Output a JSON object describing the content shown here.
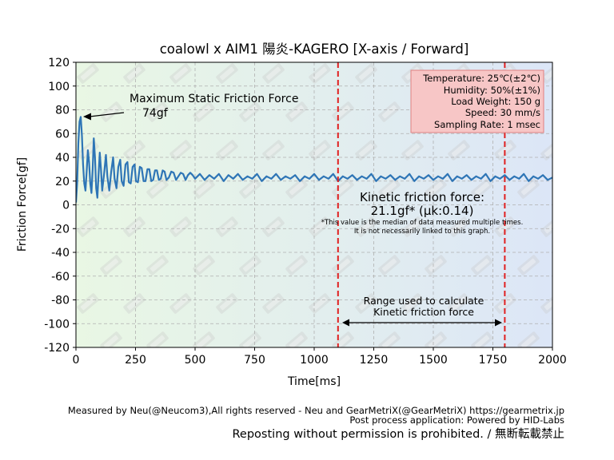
{
  "chart_data": {
    "type": "line",
    "title": "coalowl x AIM1 陽炎-KAGERO [X-axis / Forward]",
    "xlabel": "Time[ms]",
    "ylabel": "Friction Force[gf]",
    "xlim": [
      0,
      2000
    ],
    "ylim": [
      -120,
      120
    ],
    "xticks": [
      0,
      250,
      500,
      750,
      1000,
      1250,
      1500,
      1750,
      2000
    ],
    "yticks": [
      -120,
      -100,
      -80,
      -60,
      -40,
      -20,
      0,
      20,
      40,
      60,
      80,
      100,
      120
    ],
    "grid": true,
    "series": [
      {
        "name": "Friction Force",
        "color": "#2e75b6",
        "peak": {
          "x": 20,
          "y": 74
        },
        "kinetic_mean": 21.1,
        "points": [
          [
            0,
            2
          ],
          [
            5,
            18
          ],
          [
            10,
            52
          ],
          [
            15,
            70
          ],
          [
            20,
            74
          ],
          [
            25,
            58
          ],
          [
            30,
            34
          ],
          [
            35,
            18
          ],
          [
            40,
            12
          ],
          [
            45,
            28
          ],
          [
            50,
            46
          ],
          [
            55,
            36
          ],
          [
            60,
            18
          ],
          [
            65,
            10
          ],
          [
            70,
            30
          ],
          [
            75,
            56
          ],
          [
            80,
            40
          ],
          [
            85,
            14
          ],
          [
            90,
            6
          ],
          [
            95,
            26
          ],
          [
            100,
            44
          ],
          [
            105,
            30
          ],
          [
            110,
            12
          ],
          [
            118,
            26
          ],
          [
            126,
            42
          ],
          [
            132,
            24
          ],
          [
            140,
            12
          ],
          [
            148,
            28
          ],
          [
            156,
            40
          ],
          [
            162,
            22
          ],
          [
            170,
            14
          ],
          [
            178,
            32
          ],
          [
            186,
            38
          ],
          [
            192,
            20
          ],
          [
            200,
            16
          ],
          [
            208,
            34
          ],
          [
            216,
            36
          ],
          [
            222,
            19
          ],
          [
            230,
            18
          ],
          [
            238,
            32
          ],
          [
            246,
            34
          ],
          [
            252,
            20
          ],
          [
            260,
            19
          ],
          [
            268,
            32
          ],
          [
            276,
            31
          ],
          [
            284,
            20
          ],
          [
            292,
            20
          ],
          [
            300,
            30
          ],
          [
            308,
            30
          ],
          [
            316,
            20
          ],
          [
            324,
            21
          ],
          [
            332,
            29
          ],
          [
            340,
            29
          ],
          [
            348,
            21
          ],
          [
            356,
            22
          ],
          [
            364,
            29
          ],
          [
            372,
            28
          ],
          [
            380,
            21
          ],
          [
            390,
            23
          ],
          [
            400,
            28
          ],
          [
            410,
            27
          ],
          [
            420,
            21
          ],
          [
            430,
            24
          ],
          [
            440,
            27
          ],
          [
            450,
            26
          ],
          [
            460,
            21
          ],
          [
            470,
            25
          ],
          [
            480,
            27
          ],
          [
            490,
            25
          ],
          [
            500,
            22
          ],
          [
            520,
            26
          ],
          [
            540,
            21
          ],
          [
            560,
            25
          ],
          [
            580,
            22
          ],
          [
            600,
            26
          ],
          [
            620,
            20
          ],
          [
            640,
            25
          ],
          [
            660,
            22
          ],
          [
            680,
            26
          ],
          [
            700,
            21
          ],
          [
            720,
            24
          ],
          [
            740,
            22
          ],
          [
            760,
            26
          ],
          [
            780,
            20
          ],
          [
            800,
            24
          ],
          [
            820,
            22
          ],
          [
            840,
            26
          ],
          [
            860,
            21
          ],
          [
            880,
            24
          ],
          [
            900,
            22
          ],
          [
            920,
            25
          ],
          [
            940,
            20
          ],
          [
            960,
            24
          ],
          [
            980,
            22
          ],
          [
            1000,
            26
          ],
          [
            1020,
            21
          ],
          [
            1040,
            24
          ],
          [
            1060,
            22
          ],
          [
            1080,
            26
          ],
          [
            1100,
            20
          ],
          [
            1120,
            24
          ],
          [
            1140,
            22
          ],
          [
            1160,
            25
          ],
          [
            1180,
            21
          ],
          [
            1200,
            24
          ],
          [
            1220,
            22
          ],
          [
            1240,
            26
          ],
          [
            1260,
            20
          ],
          [
            1280,
            24
          ],
          [
            1300,
            22
          ],
          [
            1320,
            25
          ],
          [
            1340,
            21
          ],
          [
            1360,
            24
          ],
          [
            1380,
            22
          ],
          [
            1400,
            26
          ],
          [
            1420,
            20
          ],
          [
            1440,
            24
          ],
          [
            1460,
            22
          ],
          [
            1480,
            25
          ],
          [
            1500,
            21
          ],
          [
            1520,
            24
          ],
          [
            1540,
            22
          ],
          [
            1560,
            26
          ],
          [
            1580,
            20
          ],
          [
            1600,
            24
          ],
          [
            1620,
            22
          ],
          [
            1640,
            25
          ],
          [
            1660,
            21
          ],
          [
            1680,
            24
          ],
          [
            1700,
            22
          ],
          [
            1720,
            26
          ],
          [
            1740,
            20
          ],
          [
            1760,
            24
          ],
          [
            1780,
            22
          ],
          [
            1800,
            25
          ],
          [
            1820,
            21
          ],
          [
            1840,
            24
          ],
          [
            1860,
            22
          ],
          [
            1880,
            26
          ],
          [
            1900,
            20
          ],
          [
            1920,
            24
          ],
          [
            1940,
            22
          ],
          [
            1960,
            25
          ],
          [
            1980,
            21
          ],
          [
            2000,
            23
          ]
        ]
      }
    ],
    "vlines": [
      1100,
      1800
    ],
    "annotations": {
      "max_static_title": "Maximum Static Friction Force",
      "max_static_value": "74gf",
      "kinetic_title": "Kinetic friction force:",
      "kinetic_value": "21.1gf* (μk:0.14)",
      "kinetic_note_1": "*This value is the median of data measured multiple times.",
      "kinetic_note_2": "It is not necessarily linked to this graph.",
      "range_line_1": "Range used to calculate",
      "range_line_2": "Kinetic friction force"
    },
    "conditions": [
      "Temperature: 25℃(±2℃)",
      "Humidity: 50%(±1%)",
      "Load Weight: 150 g",
      "Speed: 30 mm/s",
      "Sampling Rate: 1 msec"
    ],
    "colors": {
      "line": "#2e75b6",
      "vline": "#e02020",
      "bg_left": "#e9f7e4",
      "bg_right": "#dce6f7",
      "info_fill": "#f7c6c6",
      "info_stroke": "#e08080"
    }
  },
  "footer": {
    "line1": "Measured by Neu(@Neucom3),All rights reserved - Neu and GearMetriX(@GearMetriX) https://gearmetrix.jp",
    "line2": "Post process application: Powered by HID-Labs",
    "line3": "Reposting without permission is prohibited. / 無断転載禁止"
  }
}
